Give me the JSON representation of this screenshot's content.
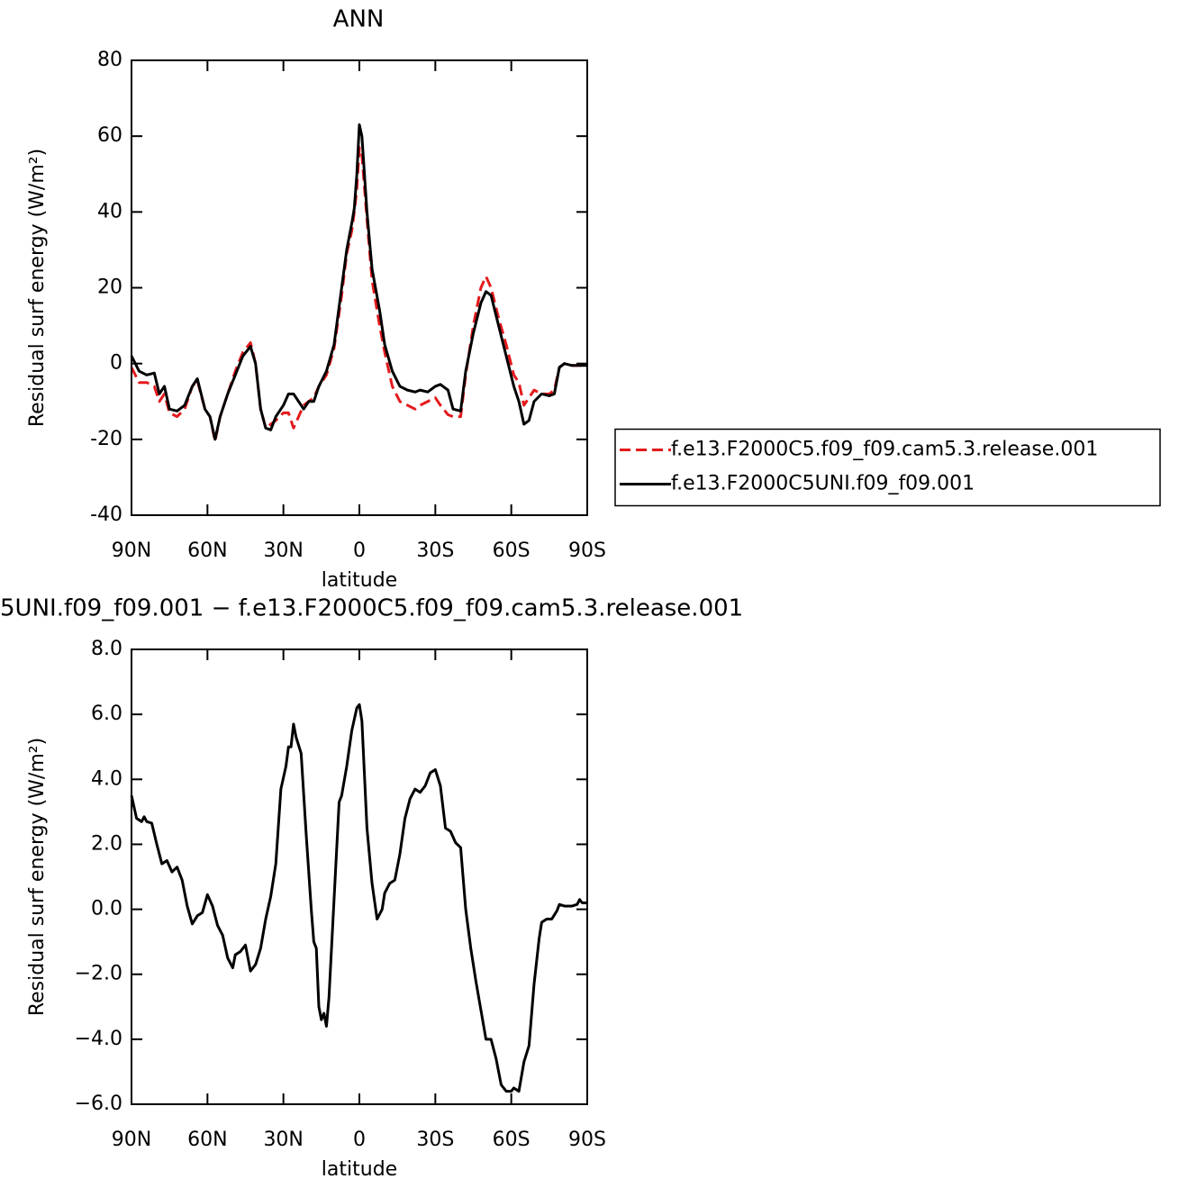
{
  "chart_data": [
    {
      "type": "line",
      "title": "ANN",
      "xlabel": "latitude",
      "ylabel": "Residual surf energy (W/m²)",
      "x": [
        90,
        87,
        84,
        81,
        79,
        77,
        75,
        72,
        69,
        66,
        64,
        61,
        59,
        57,
        55,
        52,
        49,
        46,
        43,
        41,
        39,
        37,
        35,
        33,
        30,
        28,
        26,
        24,
        22,
        20,
        18,
        16,
        13,
        10,
        7,
        5,
        3,
        2,
        1,
        0,
        -1,
        -3,
        -5,
        -8,
        -10,
        -13,
        -16,
        -19,
        -22,
        -24,
        -27,
        -30,
        -32,
        -35,
        -37,
        -40,
        -42,
        -45,
        -48,
        -50,
        -52,
        -55,
        -58,
        -61,
        -63,
        -65,
        -67,
        -69,
        -72,
        -75,
        -77,
        -79,
        -81,
        -84,
        -87,
        -90
      ],
      "series": [
        {
          "name": "f.e13.F2000C5.f09_f09.cam5.3.release.001",
          "color": "#e41a1c",
          "linestyle": "dashed",
          "values": [
            -1,
            -5,
            -5,
            -6,
            -10,
            -8,
            -13,
            -14,
            -12,
            -6,
            -4.5,
            -12,
            -14,
            -20.5,
            -14,
            -8,
            -2,
            3,
            5.5,
            0,
            -12,
            -17,
            -16,
            -15,
            -13,
            -13,
            -17,
            -14,
            -11,
            -10,
            -9,
            -6,
            -3,
            4,
            18,
            29,
            35,
            40,
            46,
            57,
            55,
            38,
            22,
            10,
            3,
            -6,
            -10,
            -11,
            -12,
            -11,
            -10,
            -9,
            -11,
            -13.5,
            -14,
            -14,
            -3,
            10,
            20,
            23,
            20,
            12,
            5,
            -3,
            -5,
            -11,
            -9,
            -7,
            -8,
            -8,
            -7,
            -1,
            0,
            -0.5,
            -0.5,
            -0.5
          ]
        },
        {
          "name": "f.e13.F2000C5UNI.f09_f09.001",
          "color": "#000000",
          "linestyle": "solid",
          "values": [
            2,
            -2,
            -3,
            -2.5,
            -8,
            -6,
            -12,
            -12.5,
            -11,
            -6,
            -4,
            -12,
            -14,
            -20,
            -14,
            -8,
            -3,
            2,
            4.5,
            0,
            -12,
            -17,
            -17.5,
            -14,
            -11,
            -8,
            -8,
            -10,
            -12,
            -10,
            -10,
            -6,
            -2,
            5,
            20,
            30,
            37,
            41,
            50,
            63,
            60,
            40,
            25,
            14,
            5,
            -2,
            -6,
            -7,
            -7.5,
            -7,
            -7.5,
            -6,
            -5.5,
            -7,
            -12,
            -12.5,
            -2,
            8,
            16,
            19,
            18,
            10,
            2,
            -6,
            -10,
            -16,
            -15,
            -10,
            -8,
            -8.5,
            -8,
            -1,
            0,
            -0.5,
            -0.5,
            -0.5
          ]
        }
      ],
      "xlim": [
        90,
        -90
      ],
      "xticks": [
        {
          "value": 90,
          "label": "90N"
        },
        {
          "value": 60,
          "label": "60N"
        },
        {
          "value": 30,
          "label": "30N"
        },
        0,
        {
          "value": -30,
          "label": "30S"
        },
        {
          "value": -60,
          "label": "60S"
        },
        {
          "value": -90,
          "label": "90S"
        }
      ],
      "ylim": [
        -40,
        80
      ],
      "yticks": [
        -40,
        -20,
        0,
        20,
        40,
        60,
        80
      ],
      "legend": "right"
    },
    {
      "type": "line",
      "title": "5UNI.f09_f09.001 − f.e13.F2000C5.f09_f09.cam5.3.release.001",
      "xlabel": "latitude",
      "ylabel": "Residual surf energy (W/m²)",
      "x": [
        90,
        88,
        86,
        85,
        84,
        82,
        80,
        78,
        76,
        74,
        72,
        70,
        68,
        66,
        64,
        62,
        60,
        58,
        56,
        54,
        52,
        50,
        49,
        47,
        45,
        43,
        41,
        39,
        37,
        35,
        33,
        31,
        29,
        28,
        27,
        26,
        25,
        23,
        21,
        19,
        18,
        17,
        16,
        15,
        14,
        13,
        12,
        10,
        8,
        7,
        5,
        3,
        1,
        0,
        -1,
        -3,
        -5,
        -7,
        -9,
        -10,
        -12,
        -14,
        -16,
        -18,
        -20,
        -22,
        -24,
        -26,
        -28,
        -30,
        -32,
        -34,
        -36,
        -38,
        -40,
        -42,
        -44,
        -46,
        -48,
        -50,
        -52,
        -54,
        -56,
        -58,
        -60,
        -61,
        -63,
        -65,
        -67,
        -69,
        -71,
        -72,
        -74,
        -76,
        -78,
        -79,
        -81,
        -84,
        -86,
        -87,
        -88,
        -90
      ],
      "series": [
        {
          "color": "#000000",
          "linestyle": "solid",
          "values": [
            3.5,
            2.8,
            2.7,
            2.85,
            2.7,
            2.65,
            2,
            1.4,
            1.5,
            1.15,
            1.3,
            0.9,
            0.1,
            -0.45,
            -0.2,
            -0.1,
            0.45,
            0.1,
            -0.5,
            -0.8,
            -1.5,
            -1.8,
            -1.4,
            -1.3,
            -1.1,
            -1.9,
            -1.7,
            -1.2,
            -0.3,
            0.4,
            1.4,
            3.7,
            4.4,
            5,
            5,
            5.7,
            5.3,
            4.8,
            2.3,
            0,
            -1,
            -1.2,
            -3,
            -3.4,
            -3.2,
            -3.6,
            -2.7,
            0.3,
            3.3,
            3.5,
            4.4,
            5.5,
            6.2,
            6.3,
            5.8,
            2.5,
            0.8,
            -0.3,
            0,
            0.5,
            0.8,
            0.9,
            1.7,
            2.8,
            3.4,
            3.7,
            3.6,
            3.8,
            4.2,
            4.3,
            3.8,
            2.5,
            2.4,
            2.05,
            1.9,
            0,
            -1.2,
            -2.2,
            -3.1,
            -4,
            -4,
            -4.6,
            -5.4,
            -5.6,
            -5.6,
            -5.5,
            -5.6,
            -4.7,
            -4.2,
            -2.3,
            -0.9,
            -0.4,
            -0.3,
            -0.3,
            -0.05,
            0.15,
            0.1,
            0.1,
            0.15,
            0.3,
            0.2,
            0.2
          ]
        }
      ],
      "xlim": [
        90,
        -90
      ],
      "xticks": [
        {
          "value": 90,
          "label": "90N"
        },
        {
          "value": 60,
          "label": "60N"
        },
        {
          "value": 30,
          "label": "30N"
        },
        0,
        {
          "value": -30,
          "label": "30S"
        },
        {
          "value": -60,
          "label": "60S"
        },
        {
          "value": -90,
          "label": "90S"
        }
      ],
      "ylim": [
        -6,
        8
      ],
      "yticks": [
        {
          "value": -6,
          "label": "−6.0"
        },
        {
          "value": -4,
          "label": "−4.0"
        },
        {
          "value": -2,
          "label": "−2.0"
        },
        {
          "value": 0,
          "label": "0.0"
        },
        {
          "value": 2,
          "label": "2.0"
        },
        {
          "value": 4,
          "label": "4.0"
        },
        {
          "value": 6,
          "label": "6.0"
        },
        {
          "value": 8,
          "label": "8.0"
        }
      ]
    }
  ]
}
